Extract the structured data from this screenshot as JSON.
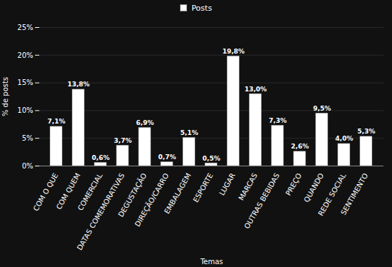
{
  "chart_data": {
    "type": "bar",
    "categories": [
      "COM O QUE",
      "COM QUEM",
      "COMERCIAL",
      "DATAS COMEMORATIVAS",
      "DEGUSTAÇÃO",
      "DIREÇÃO/CARRO",
      "EMBALAGEM",
      "ESPORTE",
      "LUGAR",
      "MARCAS",
      "OUTRAS BEBIDAS",
      "PREÇO",
      "QUANDO",
      "REDE SOCIAL",
      "SENTIMENTO"
    ],
    "series": [
      {
        "name": "Posts",
        "color": "#ffffff",
        "values": [
          7.1,
          13.8,
          0.6,
          3.7,
          6.9,
          0.7,
          5.1,
          0.5,
          19.8,
          13.0,
          7.3,
          2.6,
          9.5,
          4.0,
          5.3
        ],
        "value_labels": [
          "7,1%",
          "13,8%",
          "0,6%",
          "3,7%",
          "6,9%",
          "0,7%",
          "5,1%",
          "0,5%",
          "19,8%",
          "13,0%",
          "7,3%",
          "2,6%",
          "9,5%",
          "4,0%",
          "5,3%"
        ]
      }
    ],
    "xlabel": "Temas",
    "ylabel": "% de posts",
    "ylim": [
      0,
      25
    ],
    "yticks": [
      {
        "value": 0,
        "label": "0%"
      },
      {
        "value": 5,
        "label": "5%"
      },
      {
        "value": 10,
        "label": "10%"
      },
      {
        "value": 15,
        "label": "15%"
      },
      {
        "value": 20,
        "label": "20%"
      },
      {
        "value": 25,
        "label": "25%"
      }
    ],
    "grid": true,
    "legend": "top",
    "data_labels": true
  }
}
